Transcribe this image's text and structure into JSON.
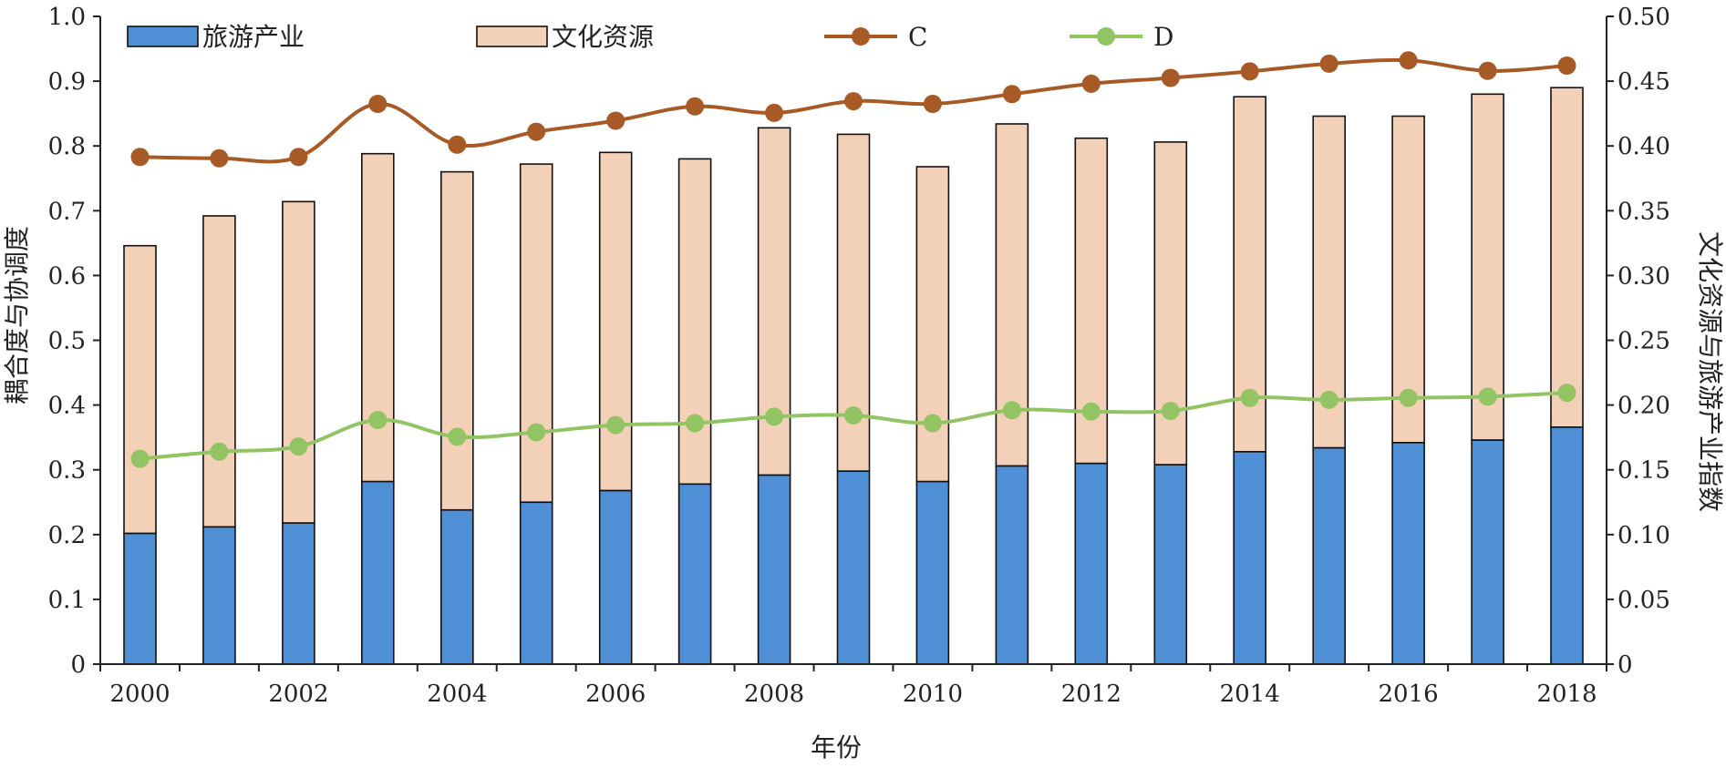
{
  "chart_data": {
    "type": "bar",
    "x_label": "年份",
    "y_label_left": "耦合度与协调度",
    "y_label_right": "文化资源与旅游产业指数",
    "left_axis": {
      "min": 0,
      "max": 1.0,
      "step": 0.1,
      "ticks": [
        "0",
        "0.1",
        "0.2",
        "0.3",
        "0.4",
        "0.5",
        "0.6",
        "0.7",
        "0.8",
        "0.9",
        "1.0"
      ]
    },
    "right_axis": {
      "min": 0,
      "max": 0.5,
      "step": 0.05,
      "ticks": [
        "0",
        "0.05",
        "0.10",
        "0.15",
        "0.20",
        "0.25",
        "0.30",
        "0.35",
        "0.40",
        "0.45",
        "0.50"
      ]
    },
    "categories": [
      "2000",
      "2001",
      "2002",
      "2003",
      "2004",
      "2005",
      "2006",
      "2007",
      "2008",
      "2009",
      "2010",
      "2011",
      "2012",
      "2013",
      "2014",
      "2015",
      "2016",
      "2017",
      "2018"
    ],
    "x_tick_labels": [
      "2000",
      "2002",
      "2004",
      "2006",
      "2008",
      "2010",
      "2012",
      "2014",
      "2016",
      "2018"
    ],
    "stacked_bars": [
      {
        "name": "旅游产业",
        "color": "#4f8fd6",
        "values": [
          0.101,
          0.106,
          0.109,
          0.141,
          0.119,
          0.125,
          0.134,
          0.139,
          0.146,
          0.149,
          0.141,
          0.153,
          0.155,
          0.154,
          0.164,
          0.167,
          0.171,
          0.173,
          0.183
        ]
      },
      {
        "name": "文化资源",
        "color": "#f3d0b8",
        "values": [
          0.222,
          0.24,
          0.248,
          0.253,
          0.261,
          0.261,
          0.261,
          0.251,
          0.268,
          0.26,
          0.243,
          0.264,
          0.251,
          0.249,
          0.274,
          0.256,
          0.252,
          0.267,
          0.262
        ]
      }
    ],
    "lines": [
      {
        "name": "C",
        "color": "#a85a26",
        "values": [
          0.783,
          0.781,
          0.783,
          0.865,
          0.802,
          0.822,
          0.839,
          0.861,
          0.851,
          0.869,
          0.865,
          0.88,
          0.896,
          0.905,
          0.915,
          0.927,
          0.932,
          0.916,
          0.924
        ]
      },
      {
        "name": "D",
        "color": "#92c464",
        "values": [
          0.317,
          0.328,
          0.336,
          0.377,
          0.351,
          0.358,
          0.369,
          0.372,
          0.382,
          0.384,
          0.372,
          0.392,
          0.39,
          0.391,
          0.411,
          0.408,
          0.411,
          0.413,
          0.419
        ]
      }
    ],
    "legend_position": "top"
  }
}
